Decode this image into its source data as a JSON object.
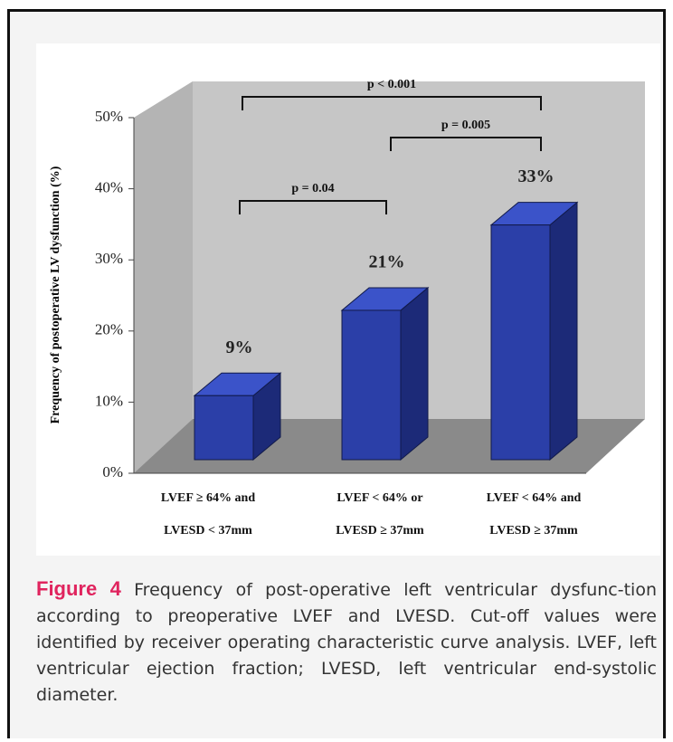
{
  "chart_data": {
    "type": "bar3d",
    "y_label": "Frequency of postoperative LV dysfunction (%)",
    "categories": [
      "LVEF ≥ 64% and\nLVESD < 37mm",
      "LVEF < 64% or\nLVESD ≥ 37mm",
      "LVEF < 64% and\nLVESD ≥ 37mm"
    ],
    "values": [
      9,
      21,
      33
    ],
    "value_labels": [
      "9%",
      "21%",
      "33%"
    ],
    "color": "#2b3fa8",
    "ylim": [
      0,
      50
    ],
    "yticks": [
      {
        "value": 0,
        "label": "0%"
      },
      {
        "value": 10,
        "label": "10%"
      },
      {
        "value": 20,
        "label": "20%"
      },
      {
        "value": 30,
        "label": "30%"
      },
      {
        "value": 40,
        "label": "40%"
      },
      {
        "value": 50,
        "label": "50%"
      }
    ],
    "annotations": [
      "p = 0.04",
      "p = 0.005",
      "p < 0.001"
    ]
  },
  "caption": {
    "label": "Figure 4",
    "text": "Frequency of post-operative left ventricular dysfunc-tion according to preoperative LVEF and LVESD. Cut-off values were identified by receiver operating characteristic curve analysis. LVEF, left ventricular ejection fraction; LVESD, left ventricular end-systolic diameter."
  }
}
